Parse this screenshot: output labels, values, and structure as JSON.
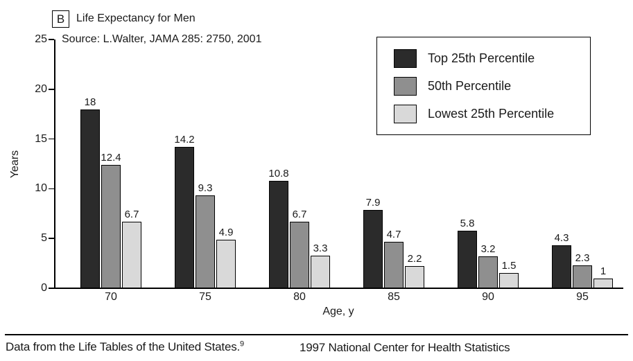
{
  "panel_label": "B",
  "title": "Life Expectancy for Men",
  "source_note": "Source: L.Walter, JAMA 285: 2750, 2001",
  "chart_data": {
    "type": "bar",
    "title": "Life Expectancy for Men",
    "categories": [
      "70",
      "75",
      "80",
      "85",
      "90",
      "95"
    ],
    "series": [
      {
        "name": "Top 25th Percentile",
        "color": "#2b2b2b",
        "values": [
          18,
          14.2,
          10.8,
          7.9,
          5.8,
          4.3
        ]
      },
      {
        "name": "50th Percentile",
        "color": "#8f8f8f",
        "values": [
          12.4,
          9.3,
          6.7,
          4.7,
          3.2,
          2.3
        ]
      },
      {
        "name": "Lowest 25th Percentile",
        "color": "#d9d9d9",
        "values": [
          6.7,
          4.9,
          3.3,
          2.2,
          1.5,
          1
        ]
      }
    ],
    "xlabel": "Age, y",
    "ylabel": "Years",
    "ylim": [
      0,
      25
    ],
    "yticks": [
      0,
      5,
      10,
      15,
      20,
      25
    ],
    "grid": false,
    "legend_position": "top-right",
    "bar_labels_shown": true
  },
  "footer": {
    "left_text": "Data from the Life Tables of the United States.",
    "left_superscript": "9",
    "right_text": "1997 National Center for Health Statistics"
  },
  "colors": {
    "axis": "#000000",
    "background": "#ffffff",
    "text": "#1a1a1a"
  }
}
